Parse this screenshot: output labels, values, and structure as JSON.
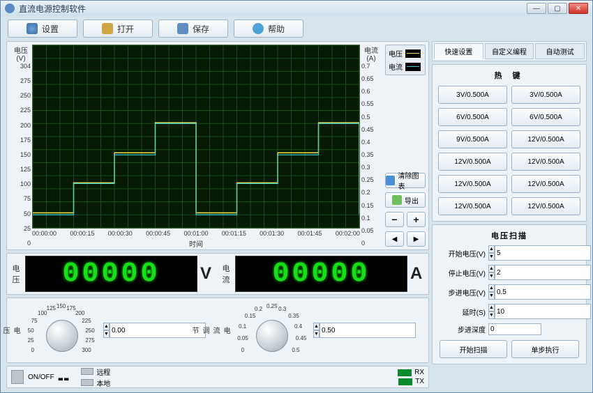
{
  "window": {
    "title": "直流电源控制软件"
  },
  "toolbar": {
    "settings": "设置",
    "open": "打开",
    "save": "保存",
    "help": "帮助"
  },
  "chart": {
    "type": "line-step",
    "background_color": "#061a06",
    "grid_color": "#1e4a1e",
    "y_left": {
      "label": "电压\n(V)",
      "ticks": [
        "304",
        "275",
        "250",
        "225",
        "200",
        "175",
        "150",
        "125",
        "100",
        "75",
        "50",
        "25",
        "0"
      ]
    },
    "y_right": {
      "label": "电流\n(A)",
      "ticks": [
        "0.7",
        "0.65",
        "0.6",
        "0.55",
        "0.5",
        "0.45",
        "0.4",
        "0.35",
        "0.3",
        "0.25",
        "0.2",
        "0.15",
        "0.1",
        "0.05",
        "0"
      ]
    },
    "x": {
      "label": "时间",
      "ticks": [
        "00:00:00",
        "00:00:15",
        "00:00:30",
        "00:00:45",
        "00:01:00",
        "00:01:15",
        "00:01:30",
        "00:01:45",
        "00:02:00"
      ]
    },
    "legend": [
      {
        "label": "电压",
        "color": "#f4e046"
      },
      {
        "label": "电流",
        "color": "#3bd1c9"
      }
    ],
    "buttons": {
      "clear": "清除图表",
      "export": "导出"
    },
    "series_v": {
      "color": "#f4e046",
      "points": [
        [
          0,
          25
        ],
        [
          15,
          25
        ],
        [
          15,
          75
        ],
        [
          30,
          75
        ],
        [
          30,
          125
        ],
        [
          45,
          125
        ],
        [
          45,
          175
        ],
        [
          60,
          175
        ],
        [
          60,
          25
        ],
        [
          75,
          25
        ],
        [
          75,
          75
        ],
        [
          90,
          75
        ],
        [
          90,
          125
        ],
        [
          105,
          125
        ],
        [
          105,
          175
        ],
        [
          120,
          175
        ],
        [
          120,
          25
        ]
      ]
    },
    "series_a": {
      "color": "#3bd1c9",
      "points": [
        [
          0,
          0.05
        ],
        [
          15,
          0.05
        ],
        [
          15,
          0.17
        ],
        [
          30,
          0.17
        ],
        [
          30,
          0.28
        ],
        [
          45,
          0.28
        ],
        [
          45,
          0.4
        ],
        [
          60,
          0.4
        ],
        [
          60,
          0.05
        ],
        [
          75,
          0.05
        ],
        [
          75,
          0.17
        ],
        [
          90,
          0.17
        ],
        [
          90,
          0.28
        ],
        [
          105,
          0.28
        ],
        [
          105,
          0.4
        ],
        [
          120,
          0.4
        ],
        [
          120,
          0.05
        ]
      ]
    }
  },
  "display": {
    "voltage": {
      "label": "电\n压",
      "value": "00000",
      "unit": "V"
    },
    "current": {
      "label": "电\n流",
      "value": "00000",
      "unit": "A"
    }
  },
  "dials": {
    "voltage": {
      "label": "电\n压\n调\n节",
      "ticks": [
        "0",
        "25",
        "50",
        "75",
        "100",
        "125",
        "150",
        "175",
        "200",
        "225",
        "250",
        "275",
        "300"
      ],
      "input": "0.00"
    },
    "current": {
      "label": "电\n流\n调\n节",
      "ticks": [
        "0",
        "0.05",
        "0.1",
        "0.15",
        "0.2",
        "0.25",
        "0.3",
        "0.35",
        "0.4",
        "0.45",
        "0.5"
      ],
      "input": "0.50"
    }
  },
  "status": {
    "onoff": "ON/OFF",
    "remote": "远程",
    "local": "本地",
    "rx": "RX",
    "tx": "TX",
    "rx_color": "#0a8a2c",
    "tx_color": "#0a8a2c"
  },
  "right": {
    "tabs": {
      "quick": "快速设置",
      "custom": "自定义编程",
      "auto": "自动测试"
    },
    "hotkey_title": "热 键",
    "hotkeys": [
      "3V/0.500A",
      "3V/0.500A",
      "6V/0.500A",
      "6V/0.500A",
      "9V/0.500A",
      "12V/0.500A",
      "12V/0.500A",
      "12V/0.500A",
      "12V/0.500A",
      "12V/0.500A",
      "12V/0.500A",
      "12V/0.500A"
    ],
    "scan_title": "电压扫描",
    "form": {
      "start_v": {
        "label": "开始电压(V)",
        "value": "5"
      },
      "stop_v": {
        "label": "停止电压(V)",
        "value": "2"
      },
      "step_v": {
        "label": "步进电压(V)",
        "value": "0.5"
      },
      "delay_s": {
        "label": "延时(S)",
        "value": "10"
      },
      "depth": {
        "label": "步进深度",
        "value": "0"
      }
    },
    "actions": {
      "start": "开始扫描",
      "step": "单步执行"
    }
  }
}
